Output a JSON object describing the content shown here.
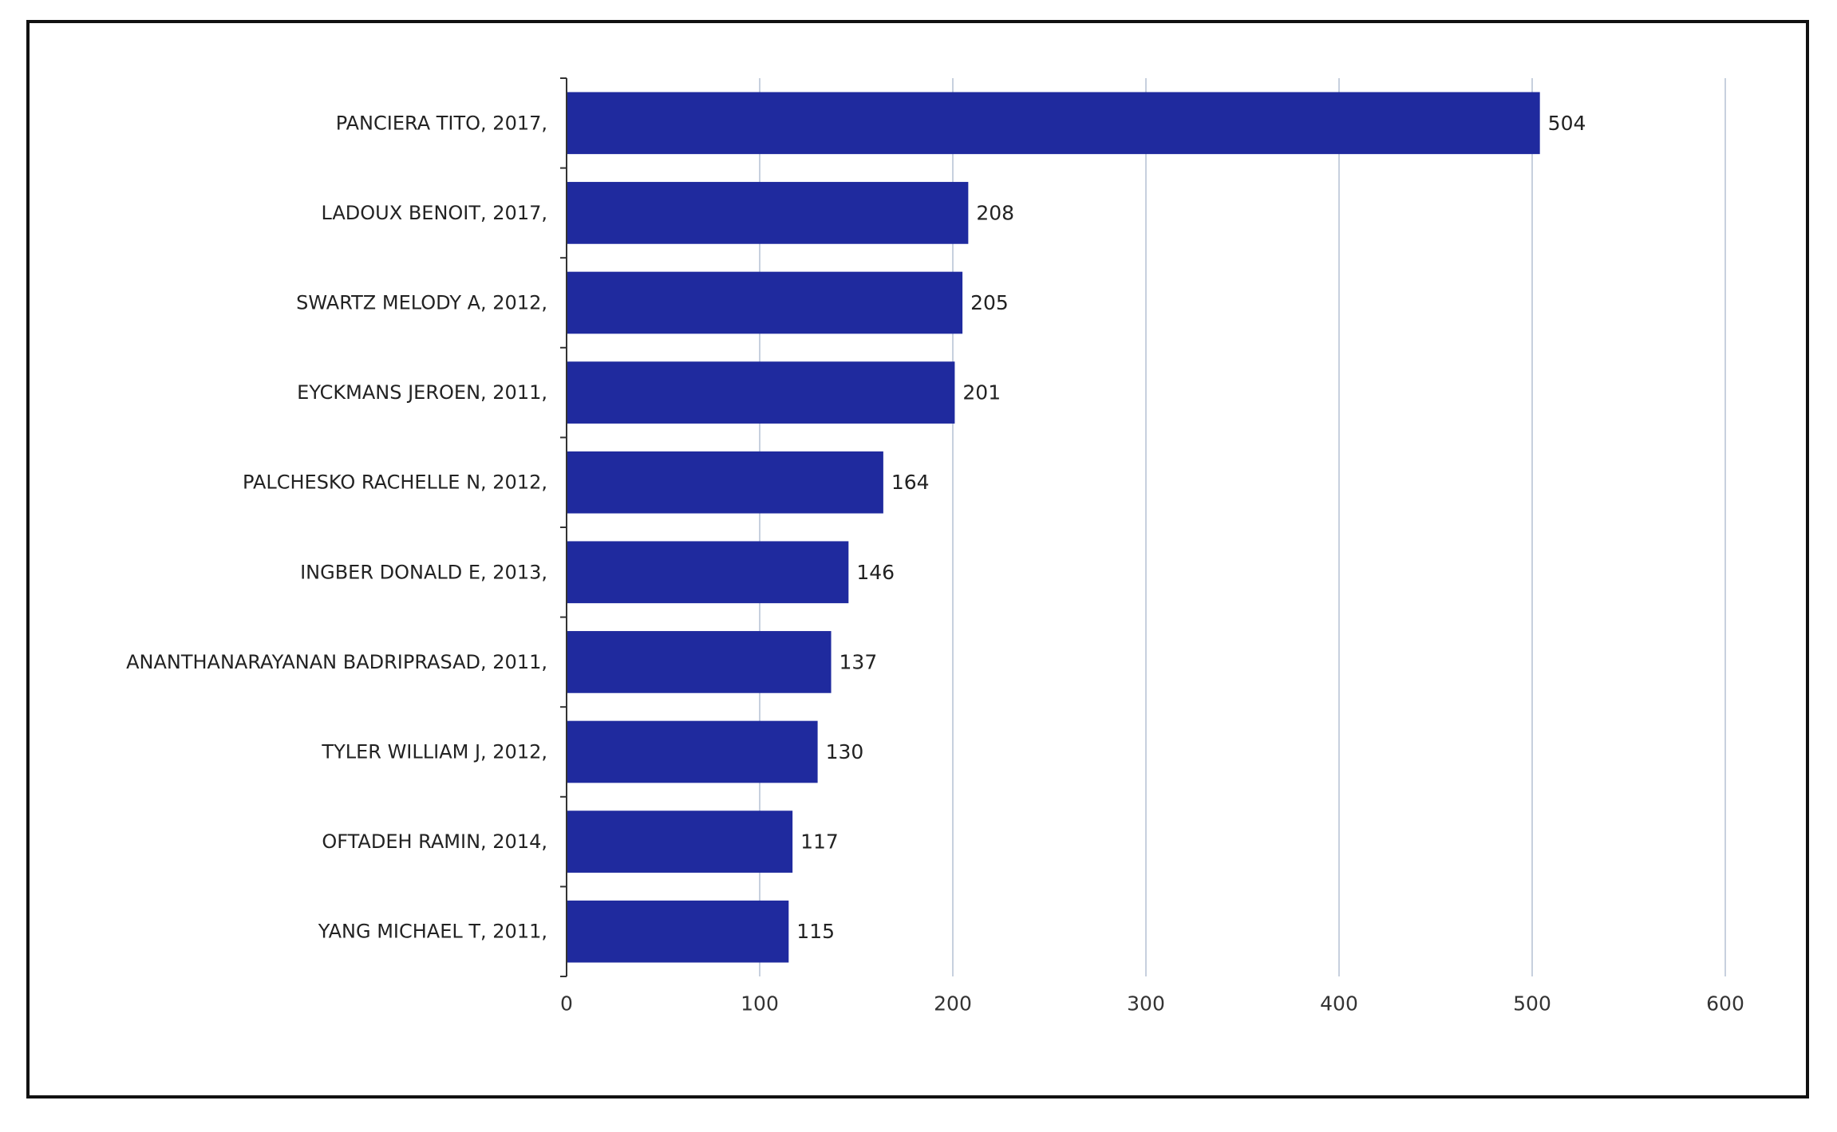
{
  "chart_data": {
    "type": "bar",
    "orientation": "horizontal",
    "categories": [
      "PANCIERA TITO, 2017,",
      "LADOUX BENOIT, 2017,",
      "SWARTZ MELODY A, 2012,",
      "EYCKMANS JEROEN, 2011,",
      "PALCHESKO RACHELLE N, 2012,",
      "INGBER DONALD E, 2013,",
      "ANANTHANARAYANAN BADRIPRASAD, 2011,",
      "TYLER WILLIAM J, 2012,",
      "OFTADEH RAMIN, 2014,",
      "YANG MICHAEL T, 2011,"
    ],
    "values": [
      504,
      208,
      205,
      201,
      164,
      146,
      137,
      130,
      117,
      115
    ],
    "data_labels": [
      "504",
      "208",
      "205",
      "201",
      "164",
      "146",
      "137",
      "130",
      "117",
      "115"
    ],
    "xlim": [
      0,
      600
    ],
    "xticks": [
      0,
      100,
      200,
      300,
      400,
      500,
      600
    ],
    "xtick_labels": [
      "0",
      "100",
      "200",
      "300",
      "400",
      "500",
      "600"
    ],
    "grid": true,
    "bar_color": "#1f2a9e",
    "grid_color": "#c7d0de"
  }
}
